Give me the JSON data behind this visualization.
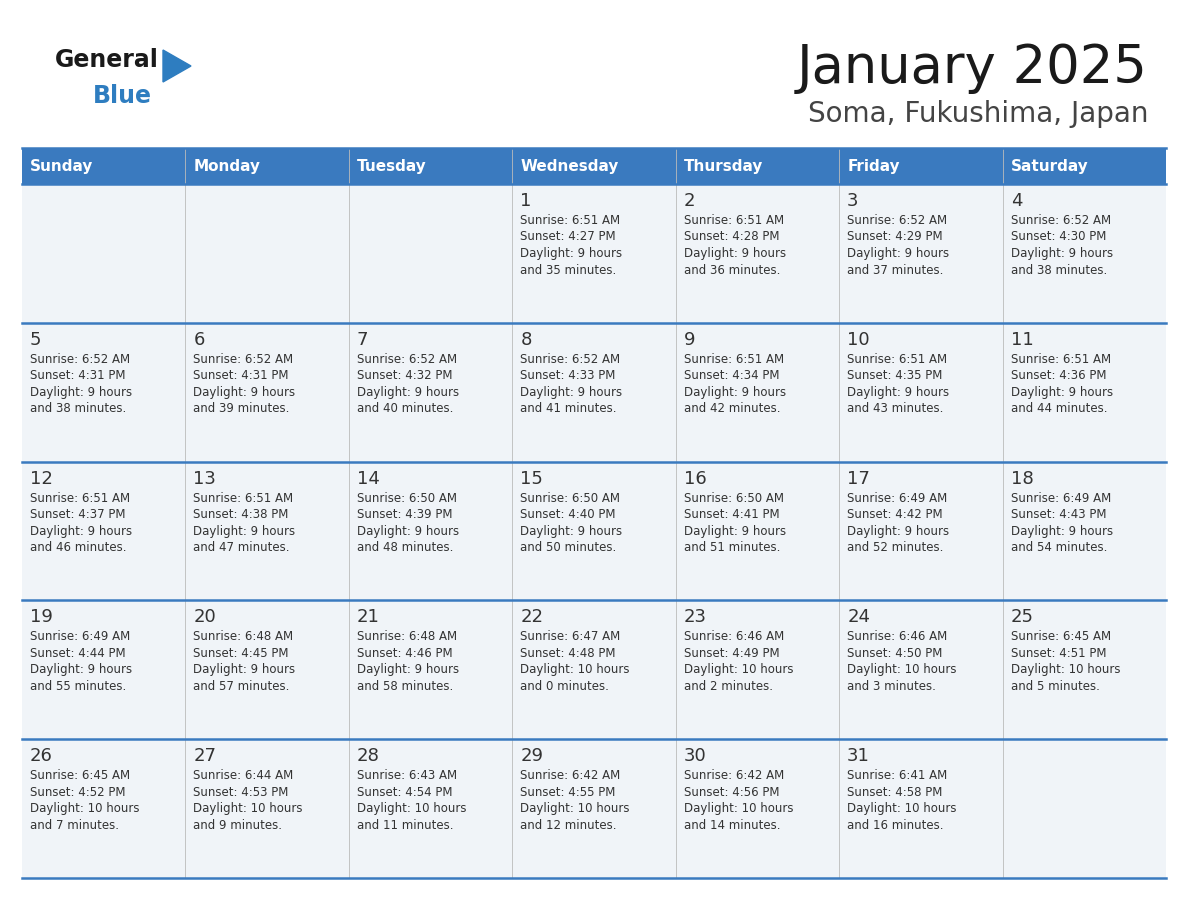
{
  "title": "January 2025",
  "subtitle": "Soma, Fukushima, Japan",
  "header_color": "#3a7abf",
  "header_text_color": "#ffffff",
  "cell_bg_color": "#f0f4f8",
  "border_color": "#3a7abf",
  "text_color": "#333333",
  "logo_black": "#1a1a1a",
  "logo_blue": "#2e7dc0",
  "days_of_week": [
    "Sunday",
    "Monday",
    "Tuesday",
    "Wednesday",
    "Thursday",
    "Friday",
    "Saturday"
  ],
  "weeks": [
    [
      {
        "day": "",
        "sunrise": "",
        "sunset": "",
        "daylight_h": "",
        "daylight_m": ""
      },
      {
        "day": "",
        "sunrise": "",
        "sunset": "",
        "daylight_h": "",
        "daylight_m": ""
      },
      {
        "day": "",
        "sunrise": "",
        "sunset": "",
        "daylight_h": "",
        "daylight_m": ""
      },
      {
        "day": "1",
        "sunrise": "6:51 AM",
        "sunset": "4:27 PM",
        "daylight_h": "9",
        "daylight_m": "35"
      },
      {
        "day": "2",
        "sunrise": "6:51 AM",
        "sunset": "4:28 PM",
        "daylight_h": "9",
        "daylight_m": "36"
      },
      {
        "day": "3",
        "sunrise": "6:52 AM",
        "sunset": "4:29 PM",
        "daylight_h": "9",
        "daylight_m": "37"
      },
      {
        "day": "4",
        "sunrise": "6:52 AM",
        "sunset": "4:30 PM",
        "daylight_h": "9",
        "daylight_m": "38"
      }
    ],
    [
      {
        "day": "5",
        "sunrise": "6:52 AM",
        "sunset": "4:31 PM",
        "daylight_h": "9",
        "daylight_m": "38"
      },
      {
        "day": "6",
        "sunrise": "6:52 AM",
        "sunset": "4:31 PM",
        "daylight_h": "9",
        "daylight_m": "39"
      },
      {
        "day": "7",
        "sunrise": "6:52 AM",
        "sunset": "4:32 PM",
        "daylight_h": "9",
        "daylight_m": "40"
      },
      {
        "day": "8",
        "sunrise": "6:52 AM",
        "sunset": "4:33 PM",
        "daylight_h": "9",
        "daylight_m": "41"
      },
      {
        "day": "9",
        "sunrise": "6:51 AM",
        "sunset": "4:34 PM",
        "daylight_h": "9",
        "daylight_m": "42"
      },
      {
        "day": "10",
        "sunrise": "6:51 AM",
        "sunset": "4:35 PM",
        "daylight_h": "9",
        "daylight_m": "43"
      },
      {
        "day": "11",
        "sunrise": "6:51 AM",
        "sunset": "4:36 PM",
        "daylight_h": "9",
        "daylight_m": "44"
      }
    ],
    [
      {
        "day": "12",
        "sunrise": "6:51 AM",
        "sunset": "4:37 PM",
        "daylight_h": "9",
        "daylight_m": "46"
      },
      {
        "day": "13",
        "sunrise": "6:51 AM",
        "sunset": "4:38 PM",
        "daylight_h": "9",
        "daylight_m": "47"
      },
      {
        "day": "14",
        "sunrise": "6:50 AM",
        "sunset": "4:39 PM",
        "daylight_h": "9",
        "daylight_m": "48"
      },
      {
        "day": "15",
        "sunrise": "6:50 AM",
        "sunset": "4:40 PM",
        "daylight_h": "9",
        "daylight_m": "50"
      },
      {
        "day": "16",
        "sunrise": "6:50 AM",
        "sunset": "4:41 PM",
        "daylight_h": "9",
        "daylight_m": "51"
      },
      {
        "day": "17",
        "sunrise": "6:49 AM",
        "sunset": "4:42 PM",
        "daylight_h": "9",
        "daylight_m": "52"
      },
      {
        "day": "18",
        "sunrise": "6:49 AM",
        "sunset": "4:43 PM",
        "daylight_h": "9",
        "daylight_m": "54"
      }
    ],
    [
      {
        "day": "19",
        "sunrise": "6:49 AM",
        "sunset": "4:44 PM",
        "daylight_h": "9",
        "daylight_m": "55"
      },
      {
        "day": "20",
        "sunrise": "6:48 AM",
        "sunset": "4:45 PM",
        "daylight_h": "9",
        "daylight_m": "57"
      },
      {
        "day": "21",
        "sunrise": "6:48 AM",
        "sunset": "4:46 PM",
        "daylight_h": "9",
        "daylight_m": "58"
      },
      {
        "day": "22",
        "sunrise": "6:47 AM",
        "sunset": "4:48 PM",
        "daylight_h": "10",
        "daylight_m": "0"
      },
      {
        "day": "23",
        "sunrise": "6:46 AM",
        "sunset": "4:49 PM",
        "daylight_h": "10",
        "daylight_m": "2"
      },
      {
        "day": "24",
        "sunrise": "6:46 AM",
        "sunset": "4:50 PM",
        "daylight_h": "10",
        "daylight_m": "3"
      },
      {
        "day": "25",
        "sunrise": "6:45 AM",
        "sunset": "4:51 PM",
        "daylight_h": "10",
        "daylight_m": "5"
      }
    ],
    [
      {
        "day": "26",
        "sunrise": "6:45 AM",
        "sunset": "4:52 PM",
        "daylight_h": "10",
        "daylight_m": "7"
      },
      {
        "day": "27",
        "sunrise": "6:44 AM",
        "sunset": "4:53 PM",
        "daylight_h": "10",
        "daylight_m": "9"
      },
      {
        "day": "28",
        "sunrise": "6:43 AM",
        "sunset": "4:54 PM",
        "daylight_h": "10",
        "daylight_m": "11"
      },
      {
        "day": "29",
        "sunrise": "6:42 AM",
        "sunset": "4:55 PM",
        "daylight_h": "10",
        "daylight_m": "12"
      },
      {
        "day": "30",
        "sunrise": "6:42 AM",
        "sunset": "4:56 PM",
        "daylight_h": "10",
        "daylight_m": "14"
      },
      {
        "day": "31",
        "sunrise": "6:41 AM",
        "sunset": "4:58 PM",
        "daylight_h": "10",
        "daylight_m": "16"
      },
      {
        "day": "",
        "sunrise": "",
        "sunset": "",
        "daylight_h": "",
        "daylight_m": ""
      }
    ]
  ]
}
